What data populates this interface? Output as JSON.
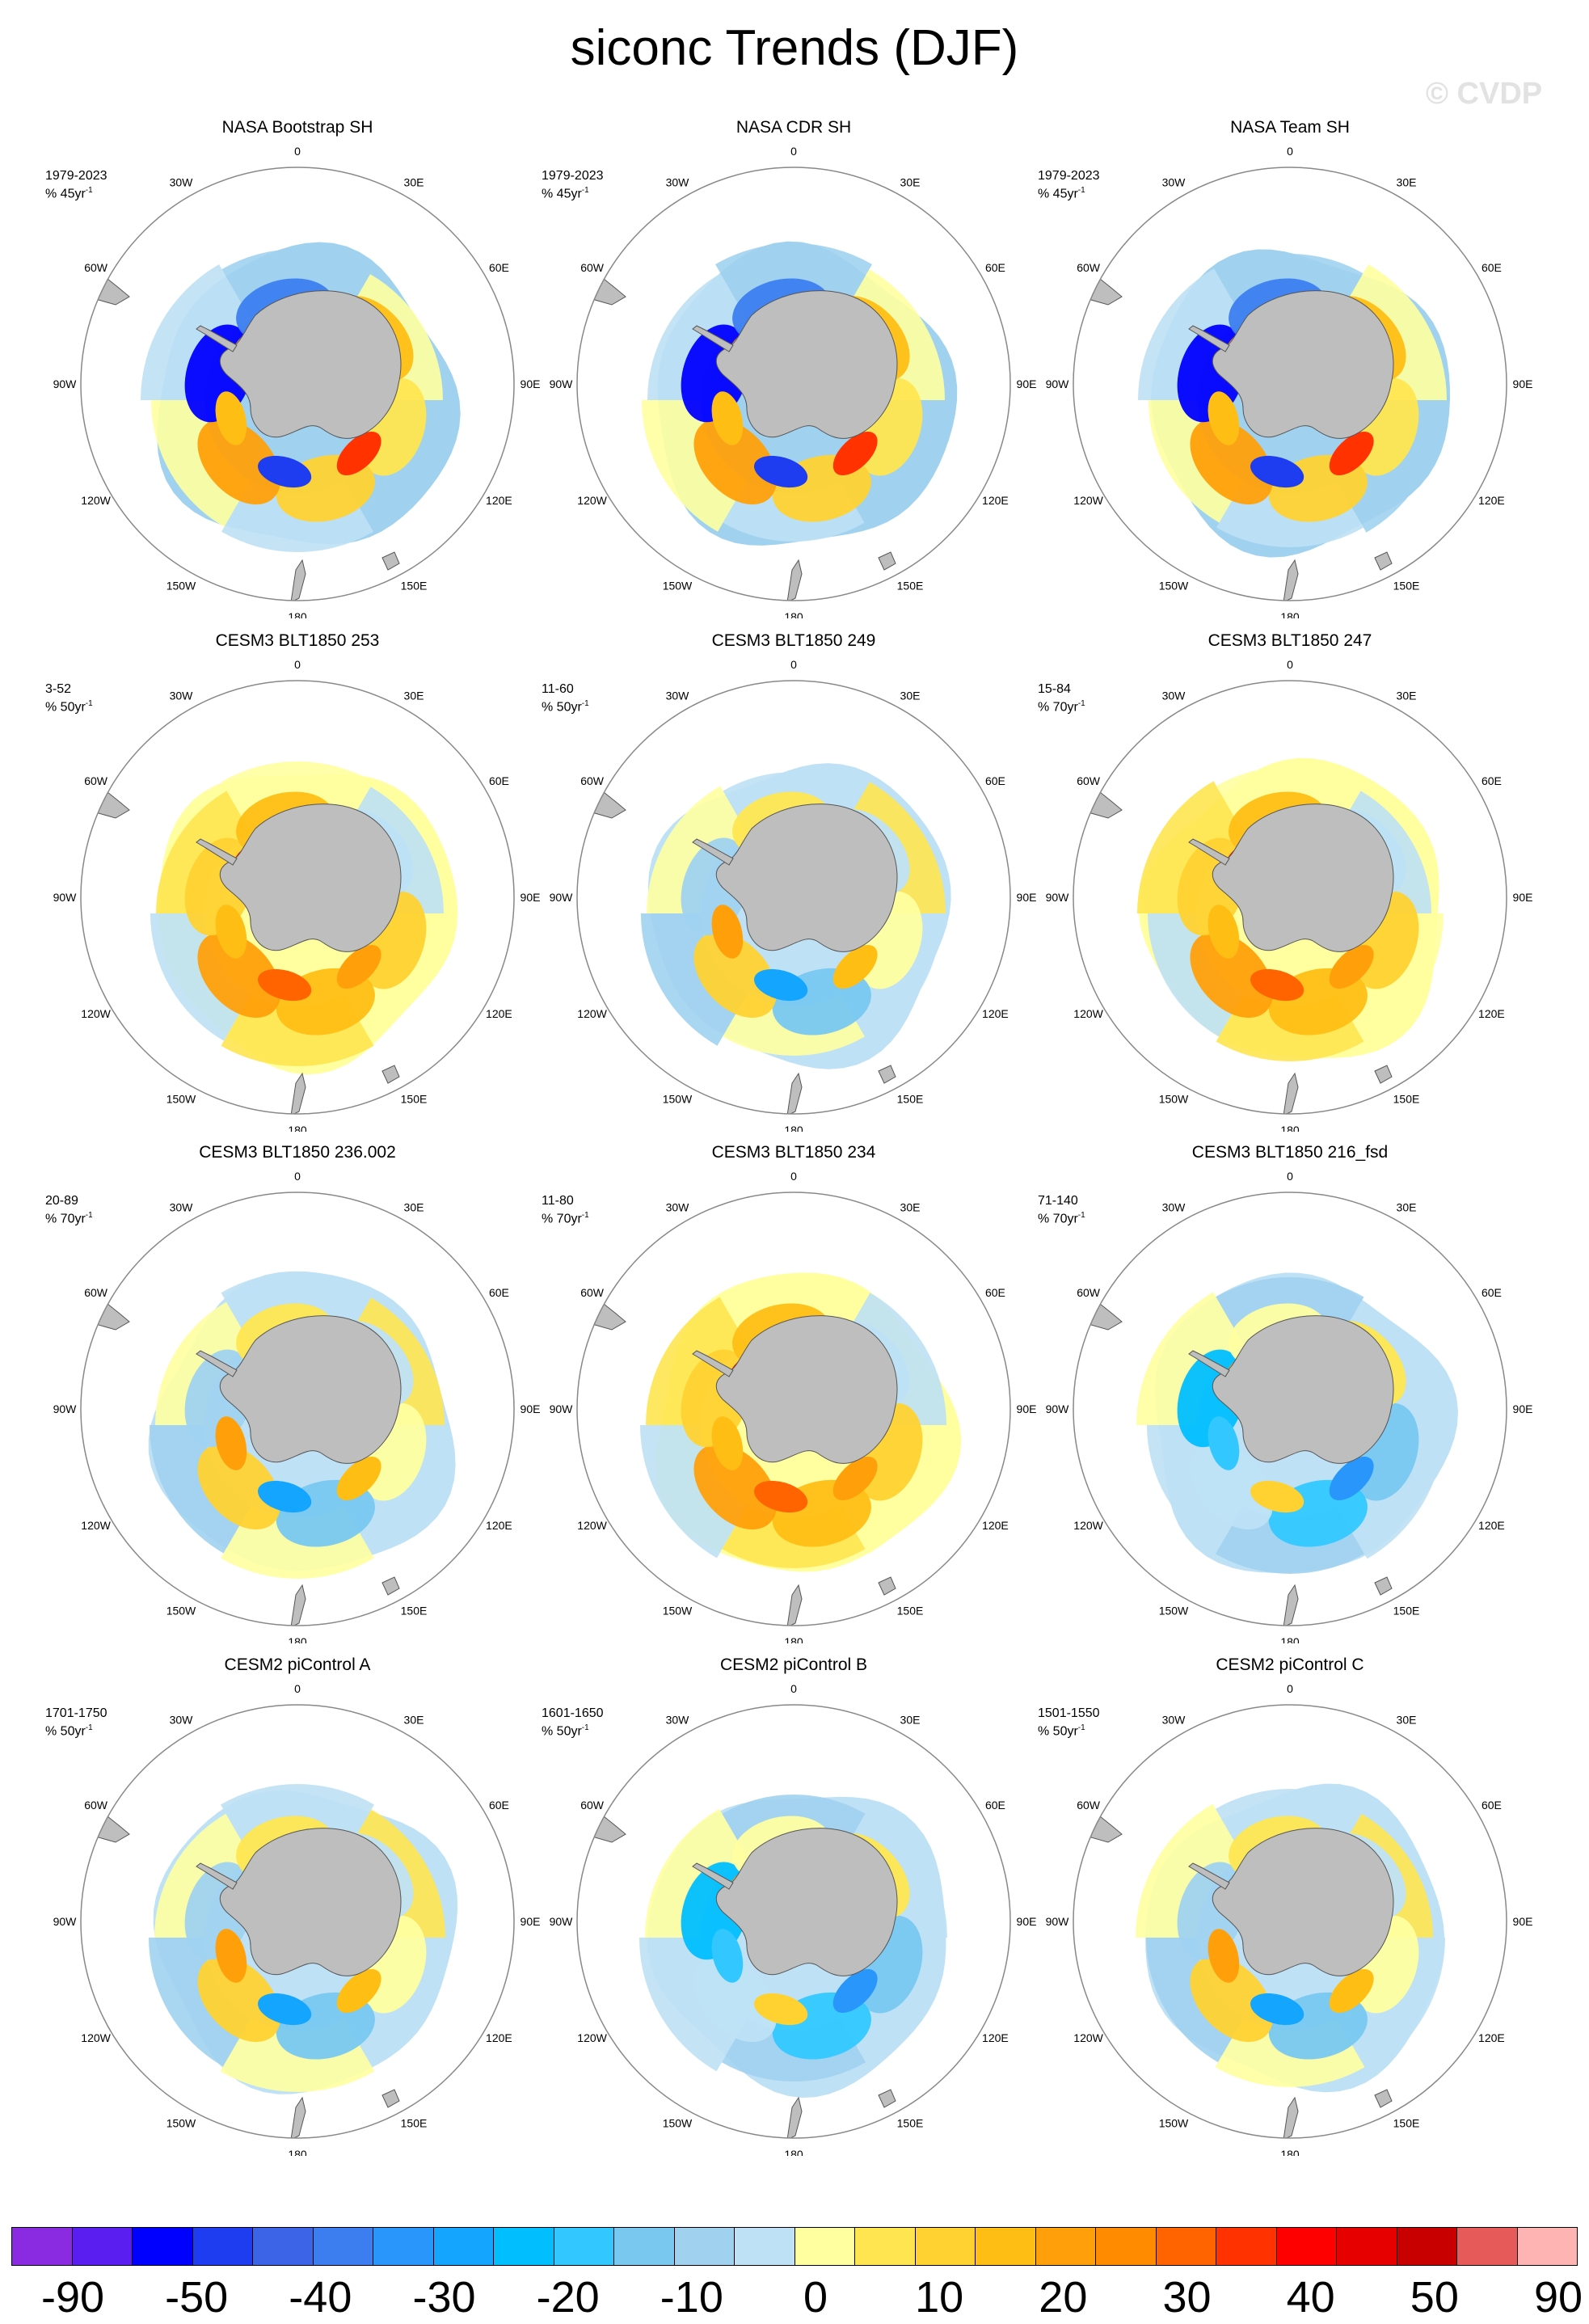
{
  "title": "siconc Trends (DJF)",
  "watermark": "© CVDP",
  "lon_labels": [
    "0",
    "30E",
    "60E",
    "90E",
    "120E",
    "150E",
    "180",
    "150W",
    "120W",
    "90W",
    "60W",
    "30W"
  ],
  "panels": [
    {
      "title": "NASA Bootstrap SH",
      "period": "1979-2023",
      "units_prefix": "% 45yr",
      "units_exp": "-1",
      "pattern": "obs"
    },
    {
      "title": "NASA CDR SH",
      "period": "1979-2023",
      "units_prefix": "% 45yr",
      "units_exp": "-1",
      "pattern": "obs"
    },
    {
      "title": "NASA Team SH",
      "period": "1979-2023",
      "units_prefix": "% 45yr",
      "units_exp": "-1",
      "pattern": "obs"
    },
    {
      "title": "CESM3 BLT1850 253",
      "period": "3-52",
      "units_prefix": "% 50yr",
      "units_exp": "-1",
      "pattern": "warm"
    },
    {
      "title": "CESM3 BLT1850 249",
      "period": "11-60",
      "units_prefix": "% 50yr",
      "units_exp": "-1",
      "pattern": "mixed"
    },
    {
      "title": "CESM3 BLT1850 247",
      "period": "15-84",
      "units_prefix": "% 70yr",
      "units_exp": "-1",
      "pattern": "warm"
    },
    {
      "title": "CESM3 BLT1850 236.002",
      "period": "20-89",
      "units_prefix": "% 70yr",
      "units_exp": "-1",
      "pattern": "mixed"
    },
    {
      "title": "CESM3 BLT1850 234",
      "period": "11-80",
      "units_prefix": "% 70yr",
      "units_exp": "-1",
      "pattern": "warm"
    },
    {
      "title": "CESM3 BLT1850 216_fsd",
      "period": "71-140",
      "units_prefix": "% 70yr",
      "units_exp": "-1",
      "pattern": "cool"
    },
    {
      "title": "CESM2 piControl A",
      "period": "1701-1750",
      "units_prefix": "% 50yr",
      "units_exp": "-1",
      "pattern": "mixed"
    },
    {
      "title": "CESM2 piControl B",
      "period": "1601-1650",
      "units_prefix": "% 50yr",
      "units_exp": "-1",
      "pattern": "cool"
    },
    {
      "title": "CESM2 piControl C",
      "period": "1501-1550",
      "units_prefix": "% 50yr",
      "units_exp": "-1",
      "pattern": "mixed"
    }
  ],
  "colorbar": {
    "colors": [
      "#8a2be2",
      "#5a1ef0",
      "#0000ff",
      "#1e3cf0",
      "#3c64e6",
      "#3c7ef0",
      "#2896fa",
      "#14a5ff",
      "#00beff",
      "#32c8ff",
      "#78c8f0",
      "#a0d2f0",
      "#bee1f5",
      "#ffffa0",
      "#ffe650",
      "#ffd232",
      "#ffbe14",
      "#ffa00a",
      "#ff8c00",
      "#ff6400",
      "#ff3200",
      "#ff0000",
      "#e60000",
      "#c80000",
      "#e65a5a",
      "#ffb4b4"
    ],
    "labels": [
      "-90",
      "-50",
      "-40",
      "-30",
      "-20",
      "-10",
      "0",
      "10",
      "20",
      "30",
      "40",
      "50",
      "90"
    ]
  },
  "colors": {
    "land": "#bebebe",
    "land_stroke": "#555555",
    "circle_stroke": "#888888"
  }
}
